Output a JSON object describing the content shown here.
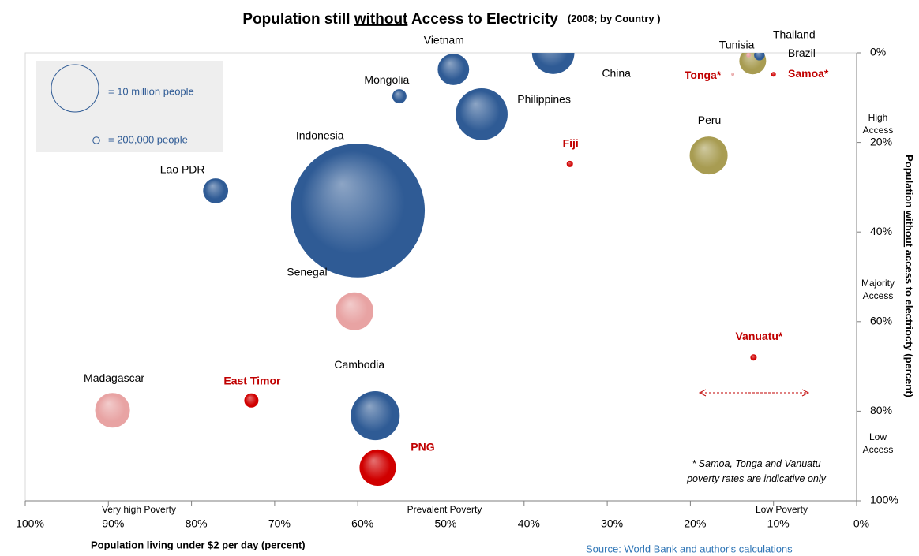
{
  "chart_data": {
    "type": "bubble",
    "title": [
      "Population still ",
      "without",
      " Access to Electricity"
    ],
    "subtitle": "(2008; by Country )",
    "x_label": "Population living under $2 per day (percent)",
    "y_label": [
      "Population ",
      "without",
      " access to electriocty (percent)"
    ],
    "xlim": [
      100,
      0
    ],
    "ylim": [
      100,
      0
    ],
    "xticks": [
      {
        "value": 100,
        "label": "100%"
      },
      {
        "value": 90,
        "label": "90%"
      },
      {
        "value": 80,
        "label": "80%"
      },
      {
        "value": 70,
        "label": "70%"
      },
      {
        "value": 60,
        "label": "60%"
      },
      {
        "value": 50,
        "label": "50%"
      },
      {
        "value": 40,
        "label": "40%"
      },
      {
        "value": 30,
        "label": "30%"
      },
      {
        "value": 20,
        "label": "20%"
      },
      {
        "value": 10,
        "label": "10%"
      },
      {
        "value": 0,
        "label": "0%"
      }
    ],
    "yticks": [
      {
        "value": 0,
        "label": "0%"
      },
      {
        "value": 20,
        "label": "20%"
      },
      {
        "value": 40,
        "label": "40%"
      },
      {
        "value": 60,
        "label": "60%"
      },
      {
        "value": 80,
        "label": "80%"
      },
      {
        "value": 100,
        "label": "100%"
      }
    ],
    "size_legend": [
      {
        "size": 10000000,
        "label": "= 10 million people"
      },
      {
        "size": 200000,
        "label": "= 200,000 people"
      }
    ],
    "points": [
      {
        "label": "Indonesia",
        "x": 60,
        "y": 35.2,
        "size": 80000000,
        "color": "#2f5b95",
        "label_color": "#000000"
      },
      {
        "label": "Vietnam",
        "x": 48.5,
        "y": 3.7,
        "size": 4400000,
        "color": "#2f5b95",
        "label_color": "#000000"
      },
      {
        "label": "China",
        "x": 36.5,
        "y": 0,
        "size": 8000000,
        "color": "#2f5b95",
        "label_color": "#000000"
      },
      {
        "label": "Mongolia",
        "x": 55,
        "y": 9.7,
        "size": 900000,
        "color": "#2f5b95",
        "label_color": "#000000"
      },
      {
        "label": "Philippines",
        "x": 45.1,
        "y": 13.7,
        "size": 12000000,
        "color": "#2f5b95",
        "label_color": "#000000"
      },
      {
        "label": "Lao PDR",
        "x": 77.1,
        "y": 30.8,
        "size": 2800000,
        "color": "#2f5b95",
        "label_color": "#000000"
      },
      {
        "label": "Senegal",
        "x": 60.4,
        "y": 57.7,
        "size": 6400000,
        "color": "#e8a3a3",
        "label_color": "#000000"
      },
      {
        "label": "Cambodia",
        "x": 57.9,
        "y": 81,
        "size": 10700000,
        "color": "#2f5b95",
        "label_color": "#000000"
      },
      {
        "label": "Madagascar",
        "x": 89.5,
        "y": 79.8,
        "size": 5400000,
        "color": "#e8a3a3",
        "label_color": "#000000"
      },
      {
        "label": "East Timor",
        "x": 72.8,
        "y": 77.6,
        "size": 900000,
        "color": "#d00000",
        "label_color": "#c00000"
      },
      {
        "label": "PNG",
        "x": 57.6,
        "y": 92.6,
        "size": 5900000,
        "color": "#d00000",
        "label_color": "#c00000"
      },
      {
        "label": "Fiji",
        "x": 34.5,
        "y": 24.8,
        "size": 180000,
        "color": "#d00000",
        "label_color": "#c00000"
      },
      {
        "label": "Peru",
        "x": 17.8,
        "y": 22.9,
        "size": 6400000,
        "color": "#a89c52",
        "label_color": "#000000"
      },
      {
        "label": "Vanuatu*",
        "x": 12.4,
        "y": 68,
        "size": 180000,
        "color": "#d00000",
        "label_color": "#c00000"
      },
      {
        "label": "Tonga*",
        "x": 14.9,
        "y": 4.8,
        "size": 40000,
        "color": "#e8a3a3",
        "label_color": "#c00000"
      },
      {
        "label": "Samoa*",
        "x": 10,
        "y": 4.8,
        "size": 100000,
        "color": "#d00000",
        "label_color": "#c00000"
      },
      {
        "label": "Brazil",
        "x": 12.5,
        "y": 1.8,
        "size": 3200000,
        "color": "#a89c52",
        "label_color": "#000000"
      },
      {
        "label": "Tunisia",
        "x": 13,
        "y": 0.5,
        "size": 100000,
        "color": "#e8a3a3",
        "label_color": "#000000"
      },
      {
        "label": "Thailand",
        "x": 11.7,
        "y": 0.5,
        "size": 500000,
        "color": "#2f5b95",
        "label_color": "#000000"
      }
    ],
    "x_regions": [
      "Very high Poverty",
      "Prevalent Poverty",
      "Low Poverty"
    ],
    "y_regions": [
      [
        "High",
        "Access"
      ],
      [
        "Majority",
        "Access"
      ],
      [
        "Low",
        "Access"
      ]
    ],
    "note": [
      "* Samoa, Tonga and Vanuatu",
      "poverty rates are indicative only"
    ],
    "source": "Source: World Bank and author's calculations"
  }
}
